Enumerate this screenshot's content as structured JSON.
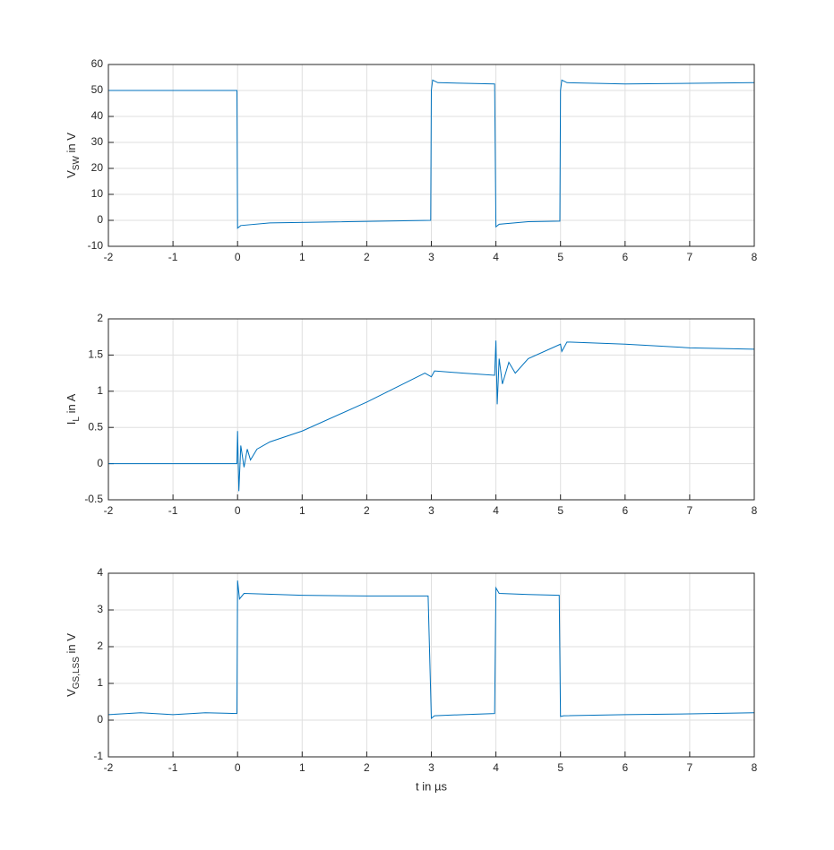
{
  "chart_data": [
    {
      "type": "line",
      "ylabel": [
        {
          "text": "V"
        },
        {
          "text": "SW",
          "sub": true
        },
        {
          "text": " in V"
        }
      ],
      "xlim": [
        -2,
        8
      ],
      "xticks": [
        -2,
        -1,
        0,
        1,
        2,
        3,
        4,
        5,
        6,
        7,
        8
      ],
      "ylim": [
        -10,
        60
      ],
      "yticks": [
        -10,
        0,
        10,
        20,
        30,
        40,
        50,
        60
      ],
      "grid": true,
      "series": [
        {
          "color": "#0072bd",
          "x": [
            -2,
            -0.01,
            0,
            0.05,
            0.5,
            2.99,
            3.0,
            3.02,
            3.1,
            3.98,
            4.0,
            4.05,
            4.5,
            4.99,
            5.0,
            5.02,
            5.1,
            6,
            8
          ],
          "values": [
            50,
            50,
            -3,
            -2,
            -1,
            0,
            50,
            54,
            53,
            52.5,
            -2.5,
            -1.5,
            -0.5,
            -0.3,
            50,
            54,
            53,
            52.5,
            53
          ]
        }
      ]
    },
    {
      "type": "line",
      "ylabel": [
        {
          "text": "I"
        },
        {
          "text": "L",
          "sub": true
        },
        {
          "text": " in A"
        }
      ],
      "xlim": [
        -2,
        8
      ],
      "xticks": [
        -2,
        -1,
        0,
        1,
        2,
        3,
        4,
        5,
        6,
        7,
        8
      ],
      "ylim": [
        -0.5,
        2
      ],
      "yticks": [
        -0.5,
        0,
        0.5,
        1,
        1.5,
        2
      ],
      "grid": true,
      "series": [
        {
          "color": "#0072bd",
          "x": [
            -2,
            -0.01,
            0,
            0.02,
            0.05,
            0.1,
            0.15,
            0.2,
            0.3,
            0.5,
            1,
            2,
            2.9,
            3.0,
            3.05,
            3.5,
            3.98,
            4.0,
            4.02,
            4.05,
            4.1,
            4.2,
            4.3,
            4.5,
            5,
            5.02,
            5.1,
            6,
            7,
            8
          ],
          "values": [
            0,
            0,
            0.45,
            -0.38,
            0.25,
            -0.05,
            0.2,
            0.05,
            0.2,
            0.3,
            0.45,
            0.85,
            1.25,
            1.2,
            1.28,
            1.25,
            1.22,
            1.7,
            0.82,
            1.45,
            1.1,
            1.4,
            1.25,
            1.45,
            1.65,
            1.55,
            1.68,
            1.65,
            1.6,
            1.58
          ]
        }
      ]
    },
    {
      "type": "line",
      "ylabel": [
        {
          "text": "V"
        },
        {
          "text": "GS,LSS",
          "sub": true
        },
        {
          "text": " in V"
        }
      ],
      "xlabel": "t in µs",
      "xlim": [
        -2,
        8
      ],
      "xticks": [
        -2,
        -1,
        0,
        1,
        2,
        3,
        4,
        5,
        6,
        7,
        8
      ],
      "ylim": [
        -1,
        4
      ],
      "yticks": [
        -1,
        0,
        1,
        2,
        3,
        4
      ],
      "grid": true,
      "series": [
        {
          "color": "#0072bd",
          "x": [
            -2,
            -1.5,
            -1,
            -0.5,
            -0.01,
            0,
            0.03,
            0.1,
            1,
            2,
            2.95,
            3.0,
            3.05,
            3.5,
            3.98,
            4.0,
            4.05,
            4.5,
            4.98,
            5.0,
            5.05,
            6,
            7,
            8
          ],
          "values": [
            0.15,
            0.2,
            0.15,
            0.2,
            0.18,
            3.8,
            3.3,
            3.45,
            3.4,
            3.38,
            3.38,
            0.05,
            0.12,
            0.15,
            0.18,
            3.6,
            3.45,
            3.42,
            3.4,
            0.1,
            0.12,
            0.15,
            0.17,
            0.2
          ]
        }
      ]
    }
  ]
}
